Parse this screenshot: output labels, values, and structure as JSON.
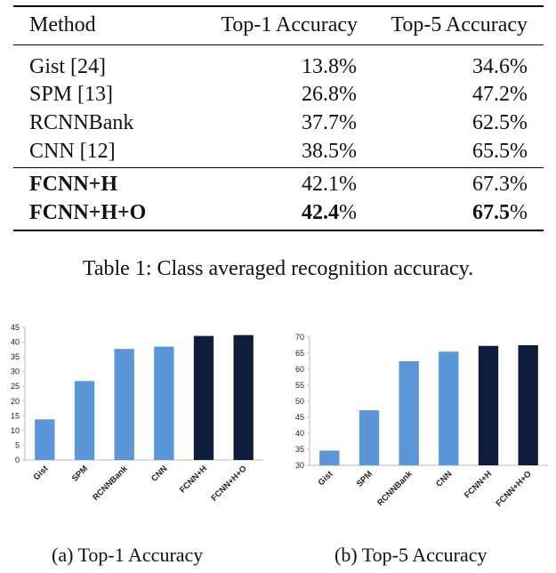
{
  "table": {
    "columns": [
      "Method",
      "Top-1 Accuracy",
      "Top-5 Accuracy"
    ],
    "rows": [
      {
        "method": "Gist [24]",
        "top1": "13.8%",
        "top5": "34.6%",
        "bold": false
      },
      {
        "method": "SPM [13]",
        "top1": "26.8%",
        "top5": "47.2%",
        "bold": false
      },
      {
        "method": "RCNNBank",
        "top1": "37.7%",
        "top5": "62.5%",
        "bold": false
      },
      {
        "method": "CNN [12]",
        "top1": "38.5%",
        "top5": "65.5%",
        "bold": false
      },
      {
        "method": "FCNN+H",
        "top1": "42.1%",
        "top5": "67.3%",
        "bold": true
      },
      {
        "method": "FCNN+H+O",
        "top1_bold": "42.4",
        "top1_rest": "%",
        "top5_bold": "67.5",
        "top5_rest": "%",
        "bold": true
      }
    ],
    "caption": "Table 1: Class averaged recognition accuracy."
  },
  "colors": {
    "light_bar": "#5b96d9",
    "dark_bar": "#0e1d3b",
    "axis": "#bdbdbd"
  },
  "chart_data": [
    {
      "type": "bar",
      "caption": "(a) Top-1 Accuracy",
      "categories": [
        "Gist",
        "SPM",
        "RCNNBank",
        "CNN",
        "FCNN+H",
        "FCNN+H+O"
      ],
      "values": [
        13.8,
        26.8,
        37.7,
        38.5,
        42.1,
        42.4
      ],
      "ylim": [
        0,
        45
      ],
      "yticks": [
        0,
        5,
        10,
        15,
        20,
        25,
        30,
        35,
        40,
        45
      ],
      "dark_categories": [
        "FCNN+H",
        "FCNN+H+O"
      ],
      "grid": false
    },
    {
      "type": "bar",
      "caption": "(b) Top-5 Accuracy",
      "categories": [
        "Gist",
        "SPM",
        "RCNNBank",
        "CNN",
        "FCNN+H",
        "FCNN+H+O"
      ],
      "values": [
        34.6,
        47.2,
        62.5,
        65.5,
        67.3,
        67.5
      ],
      "ylim": [
        30,
        70
      ],
      "yticks": [
        30,
        35,
        40,
        45,
        50,
        55,
        60,
        65,
        70
      ],
      "dark_categories": [
        "FCNN+H",
        "FCNN+H+O"
      ],
      "grid": false
    }
  ]
}
